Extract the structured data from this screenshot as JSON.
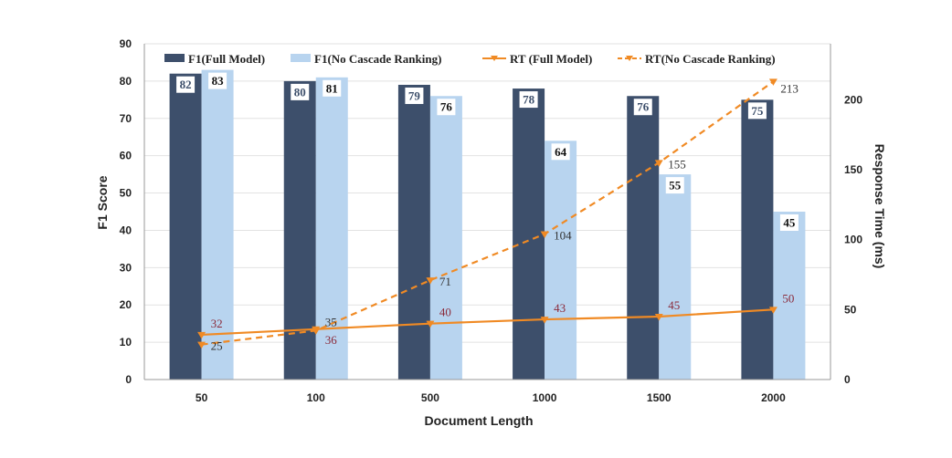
{
  "chart_data": {
    "type": "bar",
    "categories": [
      "50",
      "100",
      "500",
      "1000",
      "1500",
      "2000"
    ],
    "xlabel": "Document Length",
    "ylabel": "F1 Score",
    "y2label": "Response Time (ms)",
    "ylim": [
      0,
      90
    ],
    "y2lim": [
      0,
      240
    ],
    "yticks": [
      0,
      10,
      20,
      30,
      40,
      50,
      60,
      70,
      80,
      90
    ],
    "y2ticks": [
      0,
      50,
      100,
      150,
      200
    ],
    "grid": true,
    "legend_position": "top",
    "series": [
      {
        "name": "F1(Full Model)",
        "kind": "bar",
        "axis": "left",
        "color": "#3d4f6b",
        "label_color": "#3d4f6b",
        "values": [
          82,
          80,
          79,
          78,
          76,
          75
        ]
      },
      {
        "name": "F1(No Cascade Ranking)",
        "kind": "bar",
        "axis": "left",
        "color": "#b8d4ef",
        "label_color": "#111111",
        "values": [
          83,
          81,
          76,
          64,
          55,
          45
        ]
      },
      {
        "name": "RT (Full Model)",
        "kind": "line",
        "axis": "right",
        "style": "solid",
        "color": "#f08a24",
        "label_color": "#8b2a3a",
        "values": [
          32,
          36,
          40,
          43,
          45,
          50
        ]
      },
      {
        "name": "RT(No Cascade Ranking)",
        "kind": "line",
        "axis": "right",
        "style": "dashed",
        "color": "#f08a24",
        "label_color": "#333333",
        "values": [
          25,
          35,
          71,
          104,
          155,
          213
        ]
      }
    ]
  }
}
